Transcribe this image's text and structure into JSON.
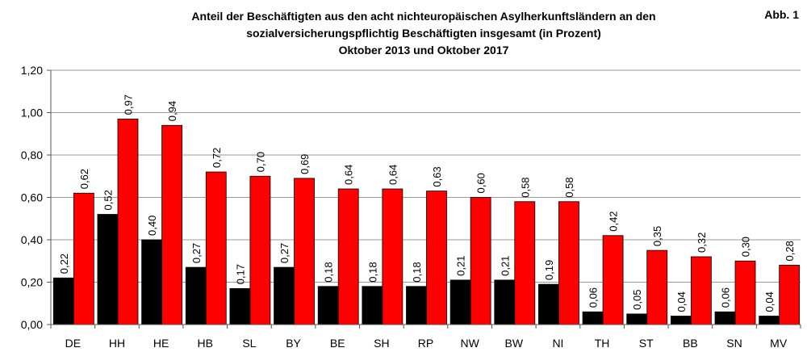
{
  "figure_label": "Abb. 1",
  "chart_data": {
    "type": "bar",
    "title_lines": [
      "Anteil der Beschäftigten aus den acht nichteuropäischen Asylherkunftsländern an den",
      "sozialversicherungspflichtig Beschäftigten insgesamt (in Prozent)",
      "Oktober 2013 und Oktober 2017"
    ],
    "categories": [
      "DE",
      "HH",
      "HE",
      "HB",
      "SL",
      "BY",
      "BE",
      "SH",
      "RP",
      "NW",
      "BW",
      "NI",
      "TH",
      "ST",
      "BB",
      "SN",
      "MV"
    ],
    "series": [
      {
        "color": "#000000",
        "values": [
          0.22,
          0.52,
          0.4,
          0.27,
          0.17,
          0.27,
          0.18,
          0.18,
          0.18,
          0.21,
          0.21,
          0.19,
          0.06,
          0.05,
          0.04,
          0.06,
          0.04
        ],
        "labels": [
          "0,22",
          "0,52",
          "0,40",
          "0,27",
          "0,17",
          "0,27",
          "0,18",
          "0,18",
          "0,18",
          "0,21",
          "0,21",
          "0,19",
          "0,06",
          "0,05",
          "0,04",
          "0,06",
          "0,04"
        ]
      },
      {
        "color": "#ff0000",
        "values": [
          0.62,
          0.97,
          0.94,
          0.72,
          0.7,
          0.69,
          0.64,
          0.64,
          0.63,
          0.6,
          0.58,
          0.58,
          0.42,
          0.35,
          0.32,
          0.3,
          0.28
        ],
        "labels": [
          "0,62",
          "0,97",
          "0,94",
          "0,72",
          "0,70",
          "0,69",
          "0,64",
          "0,64",
          "0,63",
          "0,60",
          "0,58",
          "0,58",
          "0,42",
          "0,35",
          "0,32",
          "0,30",
          "0,28"
        ]
      }
    ],
    "ylim": [
      0,
      1.2
    ],
    "yticks": [
      0,
      0.2,
      0.4,
      0.6,
      0.8,
      1.0,
      1.2
    ],
    "ytick_labels": [
      "0,00",
      "0,20",
      "0,40",
      "0,60",
      "0,80",
      "1,00",
      "1,20"
    ],
    "grid": true,
    "xlabel": "",
    "ylabel": ""
  }
}
